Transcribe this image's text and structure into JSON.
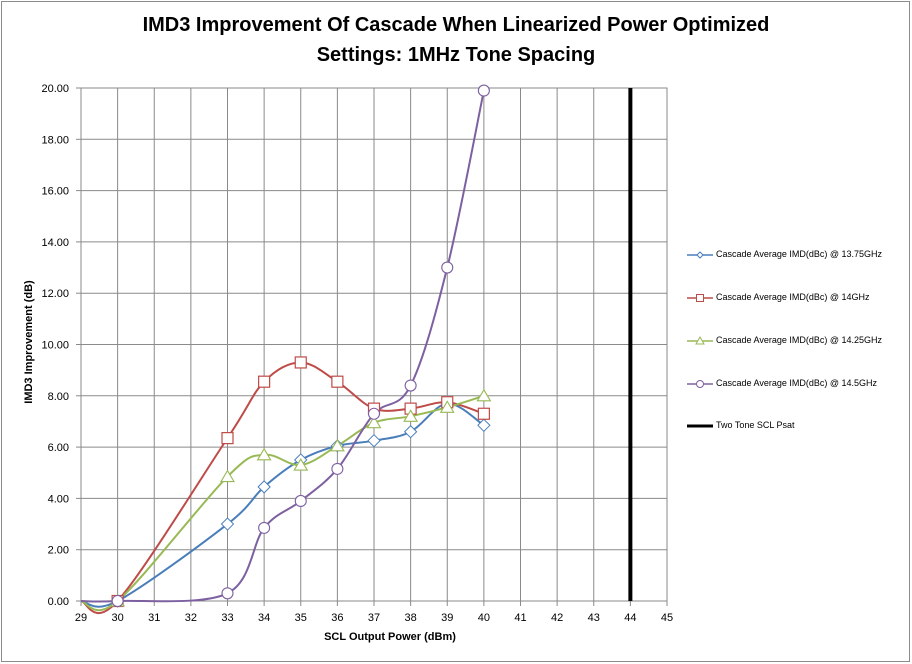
{
  "chart_data": {
    "type": "line",
    "title_line1": "IMD3 Improvement Of Cascade When Linearized Power Optimized",
    "title_line2": "Settings: 1MHz Tone Spacing",
    "xlabel": "SCL Output Power (dBm)",
    "ylabel": "IMD3 Improvement  (dB)",
    "xlim": [
      29,
      45
    ],
    "ylim": [
      0,
      20
    ],
    "x_ticks": [
      "29",
      "30",
      "31",
      "32",
      "33",
      "34",
      "35",
      "36",
      "37",
      "38",
      "39",
      "40",
      "41",
      "42",
      "43",
      "44",
      "45"
    ],
    "y_ticks": [
      "0.00",
      "2.00",
      "4.00",
      "6.00",
      "8.00",
      "10.00",
      "12.00",
      "14.00",
      "16.00",
      "18.00",
      "20.00"
    ],
    "grid": true,
    "legend_position": "right",
    "series": [
      {
        "name": "Cascade Average IMD(dBc) @ 13.75GHz",
        "color": "#4a7ebb",
        "marker": "diamond",
        "x": [
          29,
          30,
          33,
          34,
          35,
          36,
          37,
          38,
          39,
          40
        ],
        "y": [
          0.0,
          0.0,
          3.0,
          4.45,
          5.5,
          6.05,
          6.25,
          6.6,
          7.7,
          6.85
        ]
      },
      {
        "name": "Cascade Average IMD(dBc) @ 14GHz",
        "color": "#be4b48",
        "marker": "square",
        "x": [
          29,
          30,
          33,
          34,
          35,
          36,
          37,
          38,
          39,
          40
        ],
        "y": [
          0.0,
          0.0,
          6.35,
          8.55,
          9.3,
          8.55,
          7.5,
          7.5,
          7.75,
          7.3
        ]
      },
      {
        "name": "Cascade Average IMD(dBc) @ 14.25GHz",
        "color": "#98b954",
        "marker": "triangle",
        "x": [
          29,
          30,
          33,
          34,
          35,
          36,
          37,
          38,
          39,
          40
        ],
        "y": [
          0.0,
          0.0,
          4.85,
          5.7,
          5.3,
          6.05,
          6.95,
          7.2,
          7.55,
          8.0
        ]
      },
      {
        "name": "Cascade Average IMD(dBc) @ 14.5GHz",
        "color": "#7d60a0",
        "marker": "circle",
        "x": [
          29,
          30,
          33,
          34,
          35,
          36,
          37,
          38,
          39,
          40
        ],
        "y": [
          0.0,
          0.0,
          0.3,
          2.85,
          3.9,
          5.15,
          7.3,
          8.4,
          13.0,
          19.9
        ]
      },
      {
        "name": "Two Tone SCL Psat",
        "color": "#000000",
        "marker": "none",
        "x": [
          44,
          44
        ],
        "y": [
          0,
          20
        ]
      }
    ]
  }
}
